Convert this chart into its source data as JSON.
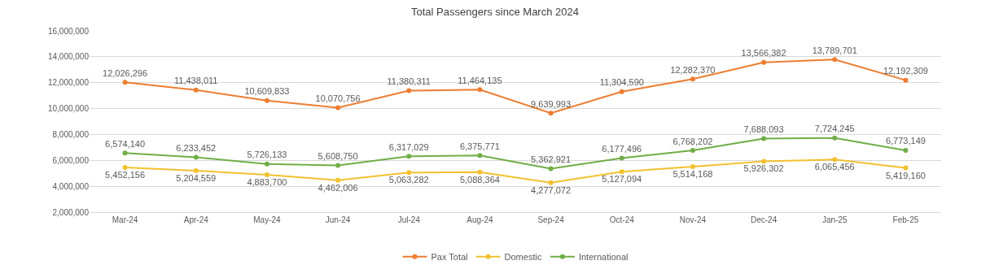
{
  "chart_data": {
    "type": "line",
    "title": "Total Passengers since March 2024",
    "categories": [
      "Mar-24",
      "Apr-24",
      "May-24",
      "Jun-24",
      "Jul-24",
      "Aug-24",
      "Sep-24",
      "Oct-24",
      "Nov-24",
      "Dec-24",
      "Jan-25",
      "Feb-25"
    ],
    "series": [
      {
        "name": "Pax Total",
        "color": "#ed7d31",
        "values": [
          12026296,
          11438011,
          10609833,
          10070756,
          11380311,
          11464135,
          9639993,
          11304590,
          12282370,
          13566382,
          13789701,
          12192309
        ],
        "value_labels": [
          "12,026,296",
          "11,438,011",
          "10,609,833",
          "10,070,756",
          "11,380,311",
          "11,464,135",
          "9,639,993",
          "11,304,590",
          "12,282,370",
          "13,566,382",
          "13,789,701",
          "12,192,309"
        ]
      },
      {
        "name": "Domestic",
        "color": "#f2c12e",
        "values": [
          5452156,
          5204559,
          4883700,
          4462006,
          5063282,
          5088364,
          4277072,
          5127094,
          5514168,
          5926302,
          6065456,
          5419160
        ],
        "value_labels": [
          "5,452,156",
          "5,204,559",
          "4,883,700",
          "4,462,006",
          "5,063,282",
          "5,088,364",
          "4,277,072",
          "5,127,094",
          "5,514,168",
          "5,926,302",
          "6,065,456",
          "5,419,160"
        ]
      },
      {
        "name": "International",
        "color": "#70ad47",
        "values": [
          6574140,
          6233452,
          5726133,
          5608750,
          6317029,
          6375771,
          5362921,
          6177496,
          6768202,
          7688093,
          7724245,
          6773149
        ],
        "value_labels": [
          "6,574,140",
          "6,233,452",
          "5,726,133",
          "5,608,750",
          "6,317,029",
          "6,375,771",
          "5,362,921",
          "6,177,496",
          "6,768,202",
          "7,688,093",
          "7,724,245",
          "6,773,149"
        ]
      }
    ],
    "ylim": [
      2000000,
      16000000
    ],
    "yticks": [
      {
        "value": 2000000,
        "label": "2,000,000"
      },
      {
        "value": 4000000,
        "label": "4,000,000"
      },
      {
        "value": 6000000,
        "label": "6,000,000"
      },
      {
        "value": 8000000,
        "label": "8,000,000"
      },
      {
        "value": 10000000,
        "label": "10,000,000"
      },
      {
        "value": 12000000,
        "label": "12,000,000"
      },
      {
        "value": 14000000,
        "label": "14,000,000"
      },
      {
        "value": 16000000,
        "label": "16,000,000"
      }
    ],
    "grid": "y",
    "legend": "bottom",
    "marker": "circle",
    "line_style": "solid"
  }
}
